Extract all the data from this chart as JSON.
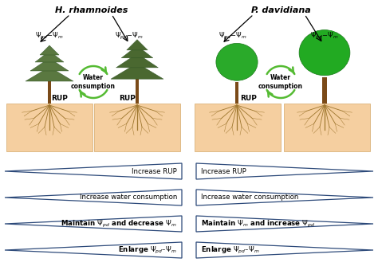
{
  "title_left": "H. rhamnoides",
  "title_right": "P. davidiana",
  "bg_color": "#ffffff",
  "soil_color": "#f5cfa0",
  "arrow_color": "#2d4a7a",
  "green_arrow_color": "#55bb33",
  "left_labels": [
    "Increase RUP",
    "Increase water consumption",
    "Maintain $\\Psi_{pd}$ and decrease $\\Psi_m$",
    "Enlarge $\\Psi_{pd}$–$\\Psi_m$"
  ],
  "right_labels": [
    "Increase RUP",
    "Increase water consumption",
    "Maintain $\\Psi_m$ and increase $\\Psi_{pd}$",
    "Enlarge $\\Psi_{pd}$–$\\Psi_m$"
  ],
  "water_text": "Water\nconsumption",
  "rup": "RUP",
  "psi_pd_m": "$\\Psi_{pd}$$-$$\\Psi_m$",
  "fig_w": 4.74,
  "fig_h": 3.39,
  "dpi": 100
}
